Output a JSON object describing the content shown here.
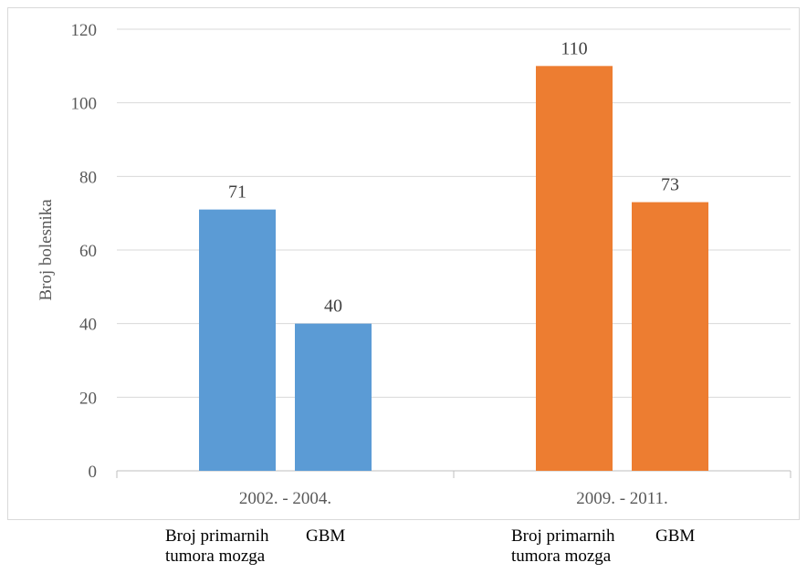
{
  "chart_data": {
    "type": "bar",
    "categories": [
      "2002. - 2004.",
      "2009. - 2011."
    ],
    "series_labels": [
      "Broj primarnih tumora mozga",
      "GBM"
    ],
    "groups": [
      {
        "category": "2002. - 2004.",
        "values": [
          71,
          40
        ],
        "color": "#5b9bd5"
      },
      {
        "category": "2009. - 2011.",
        "values": [
          110,
          73
        ],
        "color": "#ed7d31"
      }
    ],
    "title": "",
    "xlabel": "",
    "ylabel": "Broj bolesnika",
    "ylim": [
      0,
      120
    ],
    "yticks": [
      "0",
      "20",
      "40",
      "60",
      "80",
      "100",
      "120"
    ],
    "grid": true,
    "bar_captions": [
      {
        "line1": "Broj primarnih",
        "line2": "tumora mozga"
      },
      {
        "line1": "GBM",
        "line2": ""
      },
      {
        "line1": "Broj primarnih",
        "line2": "tumora mozga"
      },
      {
        "line1": "GBM",
        "line2": ""
      }
    ]
  }
}
